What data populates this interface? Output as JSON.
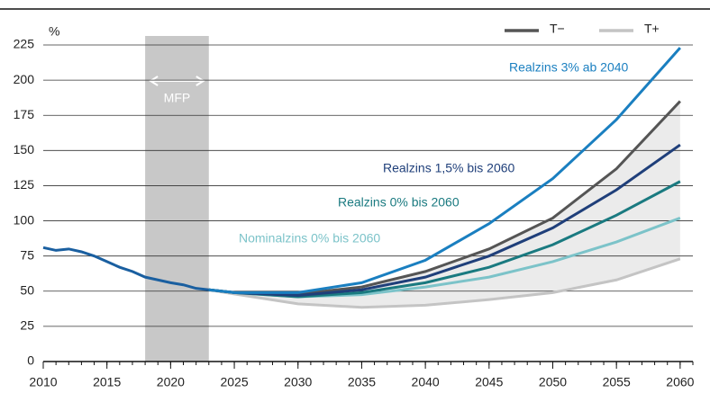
{
  "chart_data": {
    "type": "line",
    "y_label": "%",
    "xlim": [
      2010,
      2061
    ],
    "ylim": [
      0,
      225
    ],
    "xticks": [
      2010,
      2015,
      2020,
      2025,
      2030,
      2035,
      2040,
      2045,
      2050,
      2055,
      2060
    ],
    "yticks": [
      0,
      25,
      50,
      75,
      100,
      125,
      150,
      175,
      200,
      225
    ],
    "grid": true,
    "legend": "top-right",
    "shaded_period": {
      "label": "MFP",
      "x": [
        2018,
        2023
      ],
      "color": "#c8c8c8"
    },
    "range_band_color": "#ebebeb",
    "history": {
      "color": "#1a5fa0",
      "x": [
        2010,
        2011,
        2012,
        2013,
        2014,
        2015,
        2016,
        2017,
        2018,
        2019,
        2020,
        2021,
        2022,
        2023
      ],
      "values": [
        81,
        79,
        80,
        78,
        75,
        71,
        67,
        64,
        60,
        58,
        56,
        54.5,
        52,
        51
      ]
    },
    "x": [
      2023,
      2025,
      2030,
      2035,
      2040,
      2045,
      2050,
      2055,
      2060
    ],
    "series": [
      {
        "name": "T−",
        "color": "#555555",
        "values": [
          51,
          49,
          48,
          53,
          64,
          80,
          102,
          137,
          185
        ]
      },
      {
        "name": "T+",
        "color": "#c4c4c4",
        "values": [
          51,
          48,
          41,
          38.5,
          40,
          44,
          49,
          58,
          73
        ]
      },
      {
        "name": "Realzins 3% ab 2040",
        "color": "#1a7fc0",
        "values": [
          51,
          49,
          49,
          56,
          72,
          98,
          130,
          172,
          223
        ]
      },
      {
        "name": "Realzins 1,5% bis 2060",
        "color": "#1f3f7a",
        "values": [
          51,
          49,
          47,
          51,
          60,
          75,
          95,
          122,
          154
        ]
      },
      {
        "name": "Realzins 0% bis 2060",
        "color": "#1a7a80",
        "values": [
          51,
          49,
          46,
          49,
          56,
          67,
          83,
          104,
          128
        ]
      },
      {
        "name": "Nominalzins 0% bis 2060",
        "color": "#7cc3c9",
        "values": [
          51,
          49,
          46,
          47.5,
          53,
          60,
          71,
          85,
          102
        ]
      }
    ]
  }
}
